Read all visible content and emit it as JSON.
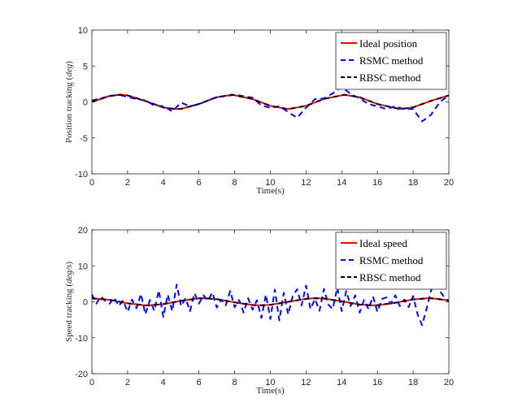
{
  "colors": {
    "ideal": "#ff0000",
    "rsmc": "#0000ff",
    "rbsc": "#000000",
    "axis": "#262626"
  },
  "chart_data": [
    {
      "type": "line",
      "title": "",
      "xlabel": "Time(s)",
      "ylabel": "Position tracking (deg)",
      "ylabel_plain": "Position tracking (",
      "ylabel_italic": "deg",
      "ylabel_close": ")",
      "xlim": [
        0,
        20
      ],
      "ylim": [
        -10,
        10
      ],
      "xticks": [
        0,
        2,
        4,
        6,
        8,
        10,
        12,
        14,
        16,
        18,
        20
      ],
      "yticks": [
        -10,
        -5,
        0,
        5,
        10
      ],
      "grid": false,
      "legend_position": "top-right",
      "series": [
        {
          "name": "Ideal position",
          "style": "solid",
          "x": [
            0,
            1,
            1.57,
            2,
            3,
            4,
            4.71,
            5,
            6,
            7,
            7.85,
            9,
            10,
            10.99,
            12,
            13,
            14.14,
            15,
            16,
            17.28,
            18,
            19,
            20
          ],
          "y": [
            0,
            0.84,
            1,
            0.91,
            0.14,
            -0.76,
            -1,
            -0.96,
            -0.28,
            0.66,
            1,
            0.41,
            -0.54,
            -1,
            -0.54,
            0.42,
            1,
            0.65,
            -0.29,
            -1,
            -0.75,
            0.15,
            0.91
          ]
        },
        {
          "name": "RSMC method",
          "style": "dashed",
          "x": [
            0,
            0.5,
            1,
            1.5,
            2,
            2.5,
            3,
            3.5,
            4,
            4.5,
            5,
            5.5,
            6,
            6.5,
            7,
            7.5,
            8,
            8.5,
            9,
            9.5,
            10,
            10.5,
            11,
            11.5,
            12,
            12.5,
            13,
            13.5,
            14,
            14.5,
            15,
            15.5,
            16,
            16.5,
            17,
            17.5,
            18,
            18.5,
            19,
            19.5,
            20
          ],
          "y": [
            0.2,
            0.5,
            0.8,
            1.0,
            0.7,
            0.4,
            0.2,
            -0.5,
            -0.6,
            -1.3,
            -0.1,
            -0.6,
            -0.3,
            0.2,
            0.7,
            0.8,
            1.0,
            0.8,
            0.6,
            -0.5,
            -0.8,
            -0.6,
            -1.4,
            -2.2,
            -0.8,
            0.4,
            0.5,
            1.2,
            2.1,
            1.1,
            0.5,
            -0.3,
            -0.6,
            -1.0,
            -0.6,
            -1.0,
            -1.0,
            -2.7,
            -1.8,
            0.0,
            0.9
          ]
        },
        {
          "name": "RBSC method",
          "style": "dashed",
          "x": [
            0,
            1,
            1.57,
            2,
            3,
            4,
            4.71,
            5,
            6,
            7,
            7.85,
            9,
            10,
            10.99,
            12,
            13,
            14.14,
            15,
            16,
            17.28,
            18,
            19,
            20
          ],
          "y": [
            0.05,
            0.84,
            1,
            0.91,
            0.14,
            -0.76,
            -1,
            -0.96,
            -0.28,
            0.66,
            1,
            0.41,
            -0.54,
            -1,
            -0.54,
            0.42,
            1,
            0.65,
            -0.29,
            -1,
            -0.75,
            0.15,
            0.91
          ]
        }
      ]
    },
    {
      "type": "line",
      "title": "",
      "xlabel": "Time(s)",
      "ylabel": "Speed tracking (deg/s)",
      "ylabel_plain": "Speed tracking (",
      "ylabel_italic": "deg/s",
      "ylabel_close": ")",
      "xlim": [
        0,
        20
      ],
      "ylim": [
        -20,
        20
      ],
      "xticks": [
        0,
        2,
        4,
        6,
        8,
        10,
        12,
        14,
        16,
        18,
        20
      ],
      "yticks": [
        -20,
        -10,
        0,
        10,
        20
      ],
      "grid": false,
      "legend_position": "top-right",
      "series": [
        {
          "name": "Ideal speed",
          "style": "solid",
          "x": [
            0,
            1,
            2,
            3,
            3.14,
            4,
            5,
            6,
            6.28,
            7,
            8,
            9,
            9.42,
            10,
            11,
            12,
            12.57,
            13,
            14,
            15,
            15.71,
            16,
            17,
            18,
            18.85,
            19,
            20
          ],
          "y": [
            1,
            0.54,
            -0.42,
            -0.99,
            -1,
            -0.65,
            0.28,
            0.96,
            1,
            0.75,
            -0.15,
            -0.91,
            -1,
            -0.84,
            0.0,
            0.84,
            1,
            0.91,
            0.14,
            -0.76,
            -1,
            -0.96,
            -0.28,
            0.66,
            1,
            0.99,
            0.41
          ]
        },
        {
          "name": "RSMC method",
          "style": "dashed",
          "x": [
            0,
            0.25,
            0.5,
            0.75,
            1,
            1.25,
            1.5,
            1.75,
            2,
            2.25,
            2.5,
            2.75,
            3,
            3.25,
            3.5,
            3.75,
            4,
            4.25,
            4.5,
            4.75,
            5,
            5.25,
            5.5,
            5.75,
            6,
            6.25,
            6.5,
            6.75,
            7,
            7.25,
            7.5,
            7.75,
            8,
            8.25,
            8.5,
            8.75,
            9,
            9.25,
            9.5,
            9.75,
            10,
            10.25,
            10.5,
            10.75,
            11,
            11.25,
            11.5,
            11.75,
            12,
            12.25,
            12.5,
            12.75,
            13,
            13.25,
            13.5,
            13.75,
            14,
            14.25,
            14.5,
            14.75,
            15,
            15.25,
            15.5,
            15.75,
            16,
            16.25,
            16.5,
            16.75,
            17,
            17.25,
            17.5,
            17.75,
            18,
            18.25,
            18.5,
            18.75,
            19,
            19.25,
            19.5,
            19.75,
            20
          ],
          "y": [
            2,
            -0.5,
            1.5,
            0.2,
            -0.5,
            1.2,
            -1.2,
            0.4,
            -2.8,
            0.6,
            -1.8,
            2.2,
            -3.5,
            0.5,
            -2.5,
            3.2,
            -4.2,
            2.0,
            -2.6,
            4.8,
            -1.2,
            1.0,
            -2.6,
            2.4,
            -0.5,
            1.8,
            0.3,
            2.6,
            -1.6,
            0.6,
            -1.0,
            3.0,
            -1.5,
            0.5,
            -3.0,
            1.0,
            -2.2,
            0.4,
            -4.5,
            2.0,
            -4.8,
            3.4,
            -5.2,
            2.5,
            -3.5,
            1.5,
            3.5,
            -1.0,
            4.5,
            -2.0,
            0.8,
            -2.5,
            3.6,
            -0.8,
            -2.0,
            4.0,
            -2.6,
            3.0,
            -1.2,
            1.8,
            -3.0,
            0.5,
            -2.0,
            1.5,
            -2.8,
            0.8,
            1.2,
            -0.5,
            1.8,
            -1.2,
            0.6,
            -1.5,
            1.6,
            -3.5,
            -6.5,
            -2.0,
            3.0,
            6.5,
            3.0,
            1.2,
            0.0
          ]
        },
        {
          "name": "RBSC method",
          "style": "dashed",
          "x": [
            0,
            1,
            2,
            3,
            3.14,
            4,
            5,
            6,
            6.28,
            7,
            8,
            9,
            9.42,
            10,
            11,
            12,
            12.57,
            13,
            14,
            15,
            15.71,
            16,
            17,
            18,
            18.85,
            19,
            20
          ],
          "y": [
            1,
            0.54,
            -0.42,
            -0.99,
            -1,
            -0.65,
            0.28,
            0.96,
            1,
            0.75,
            -0.15,
            -0.91,
            -1,
            -0.84,
            0.0,
            0.84,
            1,
            0.91,
            0.14,
            -0.76,
            -1,
            -0.96,
            -0.28,
            0.66,
            1,
            0.99,
            0.41
          ]
        }
      ]
    }
  ]
}
